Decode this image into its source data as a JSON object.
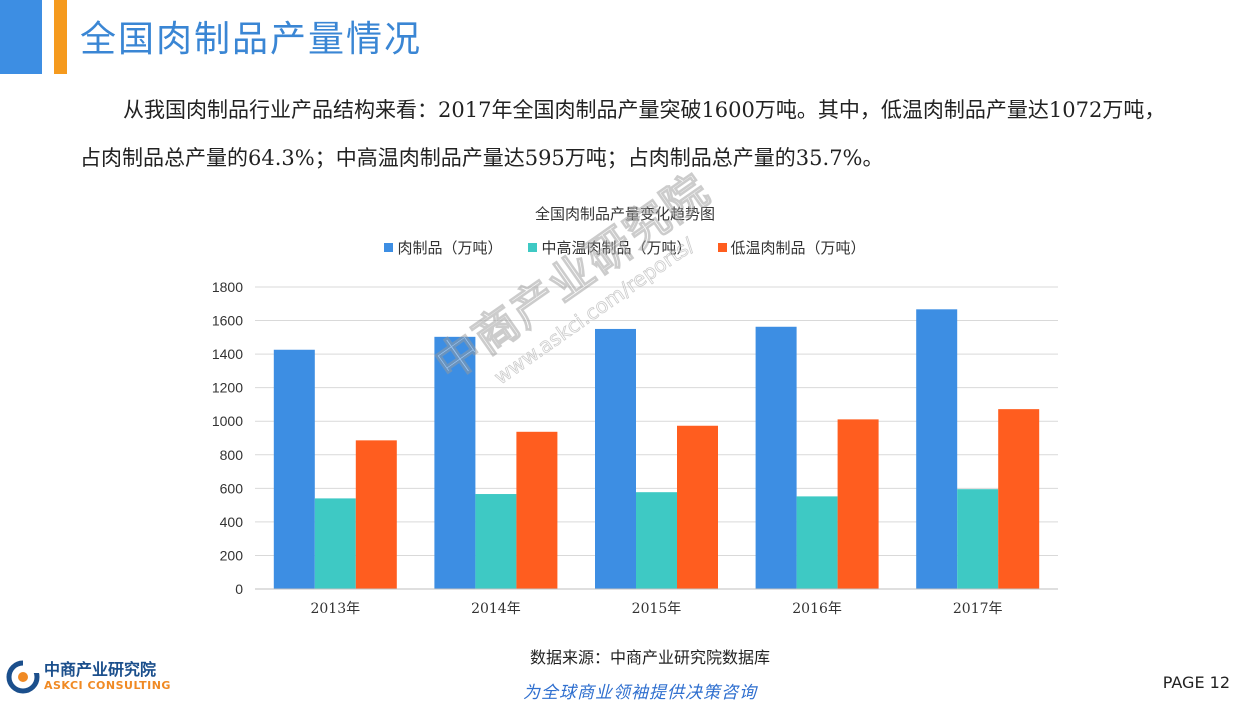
{
  "header": {
    "title": "全国肉制品产量情况",
    "accent_colors": [
      "#3d8ee3",
      "#f59a1e"
    ]
  },
  "paragraph": "从我国肉制品行业产品结构来看：2017年全国肉制品产量突破1600万吨。其中，低温肉制品产量达1072万吨，占肉制品总产量的64.3%；中高温肉制品产量达595万吨；占肉制品总产量的35.7%。",
  "chart_data": {
    "type": "bar",
    "title": "全国肉制品产量变化趋势图",
    "categories": [
      "2013年",
      "2014年",
      "2015年",
      "2016年",
      "2017年"
    ],
    "series": [
      {
        "name": "肉制品（万吨）",
        "color": "#3d8ee3",
        "values": [
          1426,
          1503,
          1550,
          1563,
          1667
        ]
      },
      {
        "name": "中高温肉制品（万吨）",
        "color": "#3ec9c4",
        "values": [
          540,
          566,
          577,
          552,
          595
        ]
      },
      {
        "name": "低温肉制品（万吨）",
        "color": "#ff5d1f",
        "values": [
          886,
          937,
          973,
          1011,
          1072
        ]
      }
    ],
    "ylim": [
      0,
      1800
    ],
    "yticks": [
      "0",
      "200",
      "400",
      "600",
      "800",
      "1000",
      "1200",
      "1400",
      "1600",
      "1800"
    ],
    "grid": true,
    "legend_position": "top"
  },
  "source": "数据来源：中商产业研究院数据库",
  "footer": {
    "logo_name": "中商产业研究院",
    "logo_en": "ASKCI CONSULTING",
    "slogan": "为全球商业领袖提供决策咨询",
    "page": "PAGE  12"
  },
  "watermark": {
    "name": "中商产业研究院",
    "url": "www.askci.com/reports/"
  }
}
